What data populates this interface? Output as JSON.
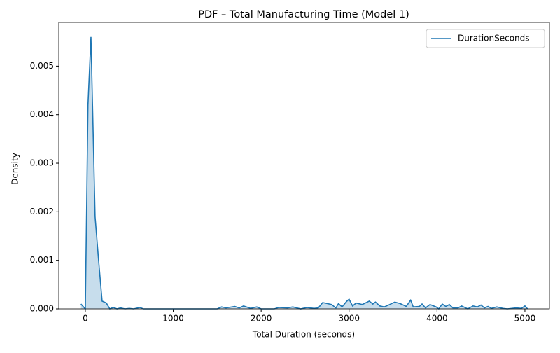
{
  "chart_data": {
    "type": "kde",
    "title": "PDF – Total Manufacturing Time (Model 1)",
    "x_label": "Total Duration (seconds)",
    "y_label": "Density",
    "legend": "upper right",
    "fill": true,
    "xlim": [
      -302,
      5279
    ],
    "ylim": [
      0,
      0.0059
    ],
    "xticks": [
      0,
      1000,
      2000,
      3000,
      4000,
      5000
    ],
    "yticks": [
      {
        "value": 0,
        "label": "0.000"
      },
      {
        "value": 0.001,
        "label": "0.001"
      },
      {
        "value": 0.002,
        "label": "0.002"
      },
      {
        "value": 0.003,
        "label": "0.003"
      },
      {
        "value": 0.004,
        "label": "0.004"
      },
      {
        "value": 0.005,
        "label": "0.005"
      }
    ],
    "series": [
      {
        "name": "DurationSeconds",
        "color": "#1f77b4",
        "x": [
          -50,
          0,
          30,
          64,
          111,
          151,
          191,
          239,
          279,
          318,
          360,
          400,
          450,
          500,
          550,
          620,
          660,
          800,
          1000,
          1200,
          1400,
          1500,
          1550,
          1600,
          1700,
          1750,
          1800,
          1880,
          1950,
          2000,
          2150,
          2200,
          2300,
          2360,
          2450,
          2520,
          2600,
          2650,
          2700,
          2800,
          2850,
          2880,
          2920,
          2970,
          3000,
          3040,
          3080,
          3150,
          3230,
          3270,
          3300,
          3350,
          3400,
          3450,
          3520,
          3580,
          3650,
          3700,
          3730,
          3800,
          3830,
          3870,
          3920,
          3990,
          4020,
          4060,
          4100,
          4140,
          4180,
          4240,
          4280,
          4350,
          4410,
          4460,
          4500,
          4540,
          4580,
          4620,
          4680,
          4750,
          4800,
          4900,
          4960,
          5000,
          5030
        ],
        "values": [
          0.0001,
          0,
          0.0042,
          0.0056,
          0.0019,
          0.001,
          0.00016,
          0.00012,
          0,
          3e-05,
          0,
          2e-05,
          0,
          1e-05,
          0,
          3e-05,
          0,
          0,
          0,
          0,
          0,
          0,
          4e-05,
          2e-05,
          5e-05,
          2e-05,
          6e-05,
          1e-05,
          4e-05,
          0,
          0,
          3e-05,
          2e-05,
          4e-05,
          0,
          3e-05,
          1e-05,
          2e-05,
          0.00013,
          9e-05,
          2e-05,
          0.00011,
          4e-05,
          0.00015,
          0.0002,
          6e-05,
          0.00012,
          9e-05,
          0.00016,
          0.0001,
          0.00014,
          6e-05,
          4e-05,
          8e-05,
          0.00014,
          0.00011,
          5e-05,
          0.00018,
          4e-05,
          5e-05,
          0.0001,
          2e-05,
          9e-05,
          4e-05,
          0,
          0.0001,
          5e-05,
          9e-05,
          2e-05,
          2e-05,
          6e-05,
          0,
          6e-05,
          4e-05,
          8e-05,
          2e-05,
          5e-05,
          1e-05,
          4e-05,
          1e-05,
          0,
          2e-05,
          1e-05,
          6e-05,
          0
        ]
      }
    ]
  }
}
